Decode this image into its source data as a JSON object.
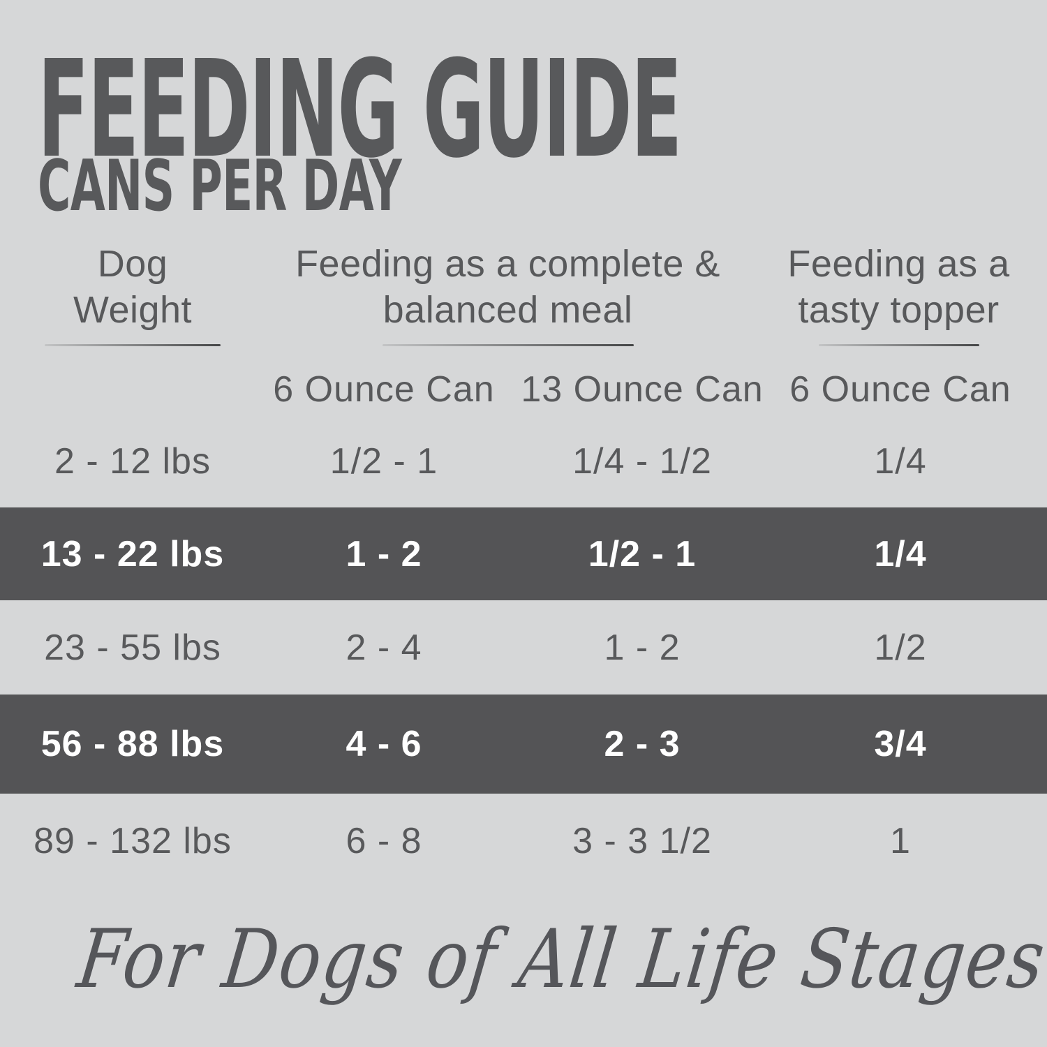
{
  "page": {
    "title": "FEEDING GUIDE",
    "subtitle": "CANS PER DAY",
    "footer_tagline": "For Dogs of All Life Stages"
  },
  "colors": {
    "background": "#d6d7d8",
    "text": "#58595b",
    "highlight_band": "#545456",
    "highlight_text": "#ffffff"
  },
  "table": {
    "column_groups": [
      {
        "line1": "Dog",
        "line2": "Weight"
      },
      {
        "line1": "Feeding as a complete &",
        "line2": "balanced meal"
      },
      {
        "line1": "Feeding as a",
        "line2": "tasty topper"
      }
    ],
    "sub_headers": [
      "6 Ounce Can",
      "13 Ounce Can",
      "6 Ounce Can"
    ],
    "rows": [
      {
        "weight": "2 - 12 lbs",
        "complete_6oz": "1/2 - 1",
        "complete_13oz": "1/4 - 1/2",
        "topper_6oz": "1/4",
        "highlighted": false
      },
      {
        "weight": "13 - 22 lbs",
        "complete_6oz": "1 - 2",
        "complete_13oz": "1/2 - 1",
        "topper_6oz": "1/4",
        "highlighted": true
      },
      {
        "weight": "23 - 55 lbs",
        "complete_6oz": "2 - 4",
        "complete_13oz": "1 - 2",
        "topper_6oz": "1/2",
        "highlighted": false
      },
      {
        "weight": "56 - 88 lbs",
        "complete_6oz": "4 - 6",
        "complete_13oz": "2 - 3",
        "topper_6oz": "3/4",
        "highlighted": true
      },
      {
        "weight": "89 - 132 lbs",
        "complete_6oz": "6 - 8",
        "complete_13oz": "3 - 3 1/2",
        "topper_6oz": "1",
        "highlighted": false
      }
    ]
  },
  "chart_data": {
    "type": "table",
    "title": "FEEDING GUIDE",
    "subtitle": "CANS PER DAY",
    "column_groups": [
      "Dog Weight",
      "Feeding as a complete & balanced meal",
      "Feeding as a tasty topper"
    ],
    "columns": [
      "Dog Weight",
      "Complete meal - 6 Ounce Can",
      "Complete meal - 13 Ounce Can",
      "Tasty topper - 6 Ounce Can"
    ],
    "rows": [
      [
        "2 - 12 lbs",
        "1/2 - 1",
        "1/4 - 1/2",
        "1/4"
      ],
      [
        "13 - 22 lbs",
        "1 - 2",
        "1/2 - 1",
        "1/4"
      ],
      [
        "23 - 55 lbs",
        "2 - 4",
        "1 - 2",
        "1/2"
      ],
      [
        "56 - 88 lbs",
        "4 - 6",
        "2 - 3",
        "3/4"
      ],
      [
        "89 - 132 lbs",
        "6 - 8",
        "3 - 3 1/2",
        "1"
      ]
    ],
    "highlighted_rows": [
      1,
      3
    ],
    "footnote": "For Dogs of All Life Stages",
    "legend_position": "none",
    "grid": false
  }
}
